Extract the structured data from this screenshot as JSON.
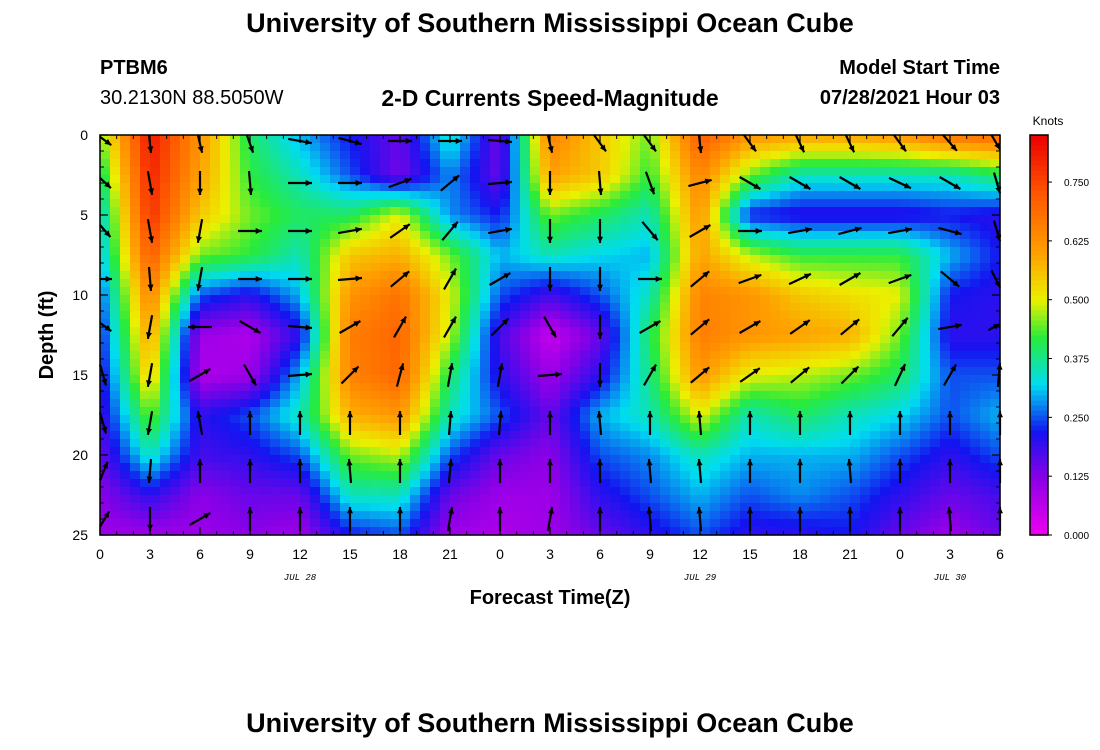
{
  "title": "University of Southern Mississippi Ocean Cube",
  "footer_title": "University of Southern Mississippi Ocean Cube",
  "station": {
    "id": "PTBM6",
    "coords": "30.2130N  88.5050W"
  },
  "subtitle": "2-D Currents Speed-Magnitude",
  "model_start": {
    "label": "Model Start Time",
    "value": "07/28/2021 Hour 03"
  },
  "chart_data": {
    "type": "heatmap",
    "xlabel": "Forecast Time(Z)",
    "ylabel": "Depth (ft)",
    "x_tick_labels": [
      "0",
      "3",
      "6",
      "9",
      "12",
      "15",
      "18",
      "21",
      "0",
      "3",
      "6",
      "9",
      "12",
      "15",
      "18",
      "21",
      "0",
      "3",
      "6"
    ],
    "x_range_hours": [
      0,
      54
    ],
    "date_labels": [
      {
        "text": "JUL 28",
        "hour": 12
      },
      {
        "text": "JUL 29",
        "hour": 36
      },
      {
        "text": "JUL 30",
        "hour": 51
      }
    ],
    "y_ticks": [
      0,
      5,
      10,
      15,
      20,
      25
    ],
    "ylim": [
      0,
      25
    ],
    "y_inverted": true,
    "colorbar": {
      "title": "Knots",
      "range": [
        0,
        0.85
      ],
      "tick_labels": [
        "0.000",
        "0.125",
        "0.250",
        "0.375",
        "0.500",
        "0.625",
        "0.750"
      ],
      "tick_values": [
        0,
        0.125,
        0.25,
        0.375,
        0.5,
        0.625,
        0.75
      ]
    },
    "speed_grid": {
      "hours": [
        0,
        3,
        6,
        9,
        12,
        15,
        18,
        21,
        24,
        27,
        30,
        33,
        36,
        39,
        42,
        45,
        48,
        51,
        54
      ],
      "depths": [
        0,
        2.5,
        5,
        7.5,
        10,
        12.5,
        15,
        17.5,
        20,
        22.5,
        25
      ],
      "values": [
        [
          0.45,
          0.82,
          0.62,
          0.4,
          0.3,
          0.22,
          0.15,
          0.35,
          0.14,
          0.65,
          0.55,
          0.45,
          0.72,
          0.62,
          0.6,
          0.6,
          0.62,
          0.68,
          0.7
        ],
        [
          0.38,
          0.8,
          0.6,
          0.42,
          0.35,
          0.25,
          0.14,
          0.28,
          0.15,
          0.6,
          0.55,
          0.42,
          0.65,
          0.45,
          0.35,
          0.35,
          0.35,
          0.35,
          0.4
        ],
        [
          0.32,
          0.78,
          0.55,
          0.45,
          0.4,
          0.4,
          0.5,
          0.28,
          0.22,
          0.45,
          0.4,
          0.35,
          0.62,
          0.22,
          0.2,
          0.2,
          0.2,
          0.22,
          0.2
        ],
        [
          0.3,
          0.72,
          0.45,
          0.42,
          0.35,
          0.55,
          0.58,
          0.45,
          0.3,
          0.35,
          0.32,
          0.3,
          0.6,
          0.48,
          0.42,
          0.42,
          0.42,
          0.3,
          0.22
        ],
        [
          0.25,
          0.65,
          0.25,
          0.2,
          0.3,
          0.62,
          0.68,
          0.5,
          0.25,
          0.18,
          0.25,
          0.35,
          0.65,
          0.62,
          0.55,
          0.52,
          0.5,
          0.22,
          0.2
        ],
        [
          0.22,
          0.6,
          0.1,
          0.08,
          0.2,
          0.66,
          0.7,
          0.48,
          0.18,
          0.05,
          0.15,
          0.4,
          0.66,
          0.62,
          0.6,
          0.58,
          0.45,
          0.2,
          0.2
        ],
        [
          0.2,
          0.55,
          0.08,
          0.1,
          0.3,
          0.65,
          0.7,
          0.4,
          0.2,
          0.1,
          0.2,
          0.38,
          0.62,
          0.5,
          0.48,
          0.45,
          0.4,
          0.25,
          0.25
        ],
        [
          0.18,
          0.45,
          0.2,
          0.25,
          0.35,
          0.58,
          0.62,
          0.35,
          0.25,
          0.15,
          0.3,
          0.35,
          0.5,
          0.35,
          0.4,
          0.35,
          0.32,
          0.25,
          0.3
        ],
        [
          0.15,
          0.35,
          0.18,
          0.2,
          0.25,
          0.45,
          0.48,
          0.25,
          0.15,
          0.12,
          0.25,
          0.28,
          0.35,
          0.3,
          0.3,
          0.3,
          0.25,
          0.2,
          0.25
        ],
        [
          0.12,
          0.2,
          0.12,
          0.15,
          0.15,
          0.35,
          0.35,
          0.15,
          0.1,
          0.1,
          0.2,
          0.25,
          0.3,
          0.25,
          0.28,
          0.25,
          0.2,
          0.15,
          0.18
        ],
        [
          0.1,
          0.1,
          0.1,
          0.12,
          0.1,
          0.22,
          0.25,
          0.1,
          0.08,
          0.1,
          0.15,
          0.2,
          0.25,
          0.2,
          0.2,
          0.22,
          0.15,
          0.1,
          0.15
        ]
      ]
    },
    "direction_vectors": {
      "hours": [
        0,
        3,
        6,
        9,
        12,
        15,
        18,
        21,
        24,
        27,
        30,
        33,
        36,
        39,
        42,
        45,
        48,
        51,
        54
      ],
      "depths": [
        0,
        3,
        6,
        9,
        12,
        15,
        18,
        21,
        24
      ],
      "angles_deg": [
        [
          -20,
          -85,
          -80,
          -75,
          -10,
          -15,
          0,
          0,
          -5,
          -80,
          -60,
          -60,
          -85,
          -60,
          -70,
          -70,
          -60,
          -55,
          -45
        ],
        [
          -25,
          -80,
          -90,
          -85,
          0,
          0,
          20,
          40,
          5,
          -90,
          -85,
          -70,
          15,
          -30,
          -30,
          -30,
          -25,
          -30,
          -60
        ],
        [
          -30,
          -80,
          -100,
          0,
          0,
          10,
          35,
          50,
          10,
          -90,
          -90,
          -50,
          30,
          0,
          10,
          15,
          10,
          -15,
          -60
        ],
        [
          0,
          -85,
          -100,
          0,
          0,
          5,
          40,
          60,
          30,
          -90,
          -90,
          0,
          40,
          20,
          25,
          30,
          20,
          -40,
          -45
        ],
        [
          -20,
          -100,
          180,
          -30,
          -5,
          30,
          60,
          60,
          45,
          -60,
          -90,
          30,
          40,
          30,
          35,
          40,
          50,
          10,
          15
        ],
        [
          -60,
          -100,
          30,
          -60,
          5,
          45,
          75,
          80,
          80,
          5,
          -90,
          60,
          40,
          35,
          40,
          45,
          65,
          60,
          80
        ],
        [
          -60,
          -100,
          100,
          90,
          90,
          90,
          90,
          85,
          85,
          90,
          95,
          90,
          95,
          90,
          90,
          90,
          90,
          90,
          90
        ],
        [
          50,
          -95,
          90,
          90,
          90,
          95,
          90,
          85,
          90,
          90,
          90,
          95,
          95,
          90,
          90,
          95,
          90,
          90,
          90
        ],
        [
          40,
          -90,
          30,
          90,
          90,
          90,
          90,
          80,
          90,
          80,
          90,
          95,
          95,
          90,
          90,
          90,
          90,
          95,
          90
        ]
      ]
    }
  }
}
